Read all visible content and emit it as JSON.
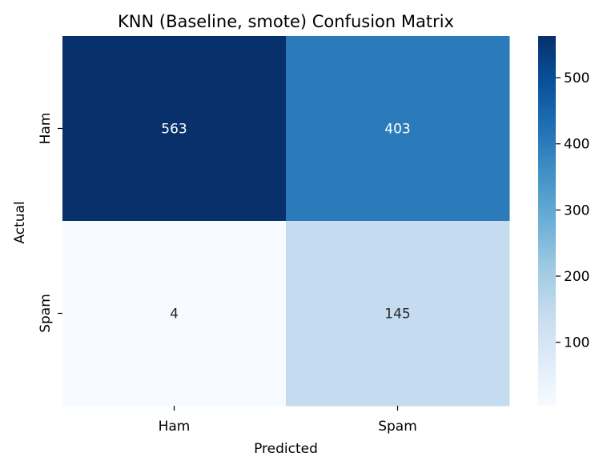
{
  "chart_data": {
    "type": "heatmap",
    "title": "KNN (Baseline, smote) Confusion Matrix",
    "xlabel": "Predicted",
    "ylabel": "Actual",
    "x_categories": [
      "Ham",
      "Spam"
    ],
    "y_categories": [
      "Ham",
      "Spam"
    ],
    "values": [
      [
        563,
        403
      ],
      [
        4,
        145
      ]
    ],
    "colormap": "Blues",
    "colorbar": {
      "min": 4,
      "max": 563,
      "ticks": [
        100,
        200,
        300,
        400,
        500
      ]
    }
  }
}
